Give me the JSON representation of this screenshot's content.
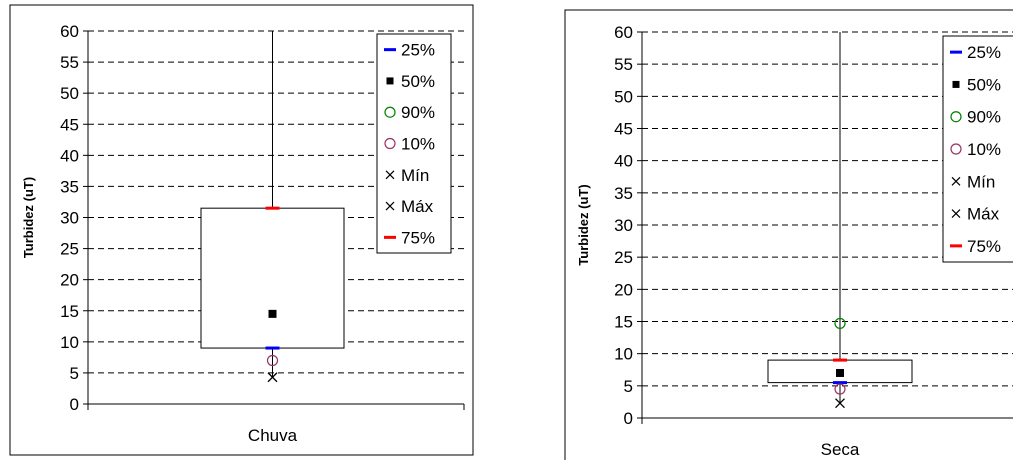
{
  "chart_data": [
    {
      "type": "box",
      "ylabel": "Turbidez (uT)",
      "ylim": [
        0,
        60
      ],
      "ytick_step": 5,
      "grid": true,
      "legend_position": "top-right",
      "category": "Chuva",
      "stats": {
        "p25": 9,
        "p50": 14.5,
        "p90": 60,
        "p10": 7,
        "min": 4.3,
        "max": 60,
        "p75": 31.5
      },
      "legend": [
        {
          "key": "p25",
          "label": "25%",
          "marker": "dash",
          "color": "#0000ff"
        },
        {
          "key": "p50",
          "label": "50%",
          "marker": "square",
          "color": "#000000"
        },
        {
          "key": "p90",
          "label": "90%",
          "marker": "circle",
          "color": "#008000"
        },
        {
          "key": "p10",
          "label": "10%",
          "marker": "circle",
          "color": "#993366"
        },
        {
          "key": "min",
          "label": "Mín",
          "marker": "x",
          "color": "#000000"
        },
        {
          "key": "max",
          "label": "Máx",
          "marker": "x",
          "color": "#000000"
        },
        {
          "key": "p75",
          "label": "75%",
          "marker": "dash",
          "color": "#ff0000"
        }
      ]
    },
    {
      "type": "box",
      "ylabel": "Turbidez (uT)",
      "ylim": [
        0,
        60
      ],
      "ytick_step": 5,
      "grid": true,
      "legend_position": "top-right",
      "category": "Seca",
      "stats": {
        "p25": 5.5,
        "p50": 7,
        "p90": 14.7,
        "p10": 4.5,
        "min": 2.3,
        "max": 60,
        "p75": 9
      },
      "legend": [
        {
          "key": "p25",
          "label": "25%",
          "marker": "dash",
          "color": "#0000ff"
        },
        {
          "key": "p50",
          "label": "50%",
          "marker": "square",
          "color": "#000000"
        },
        {
          "key": "p90",
          "label": "90%",
          "marker": "circle",
          "color": "#008000"
        },
        {
          "key": "p10",
          "label": "10%",
          "marker": "circle",
          "color": "#993366"
        },
        {
          "key": "min",
          "label": "Mín",
          "marker": "x",
          "color": "#000000"
        },
        {
          "key": "max",
          "label": "Máx",
          "marker": "x",
          "color": "#000000"
        },
        {
          "key": "p75",
          "label": "75%",
          "marker": "dash",
          "color": "#ff0000"
        }
      ]
    }
  ]
}
